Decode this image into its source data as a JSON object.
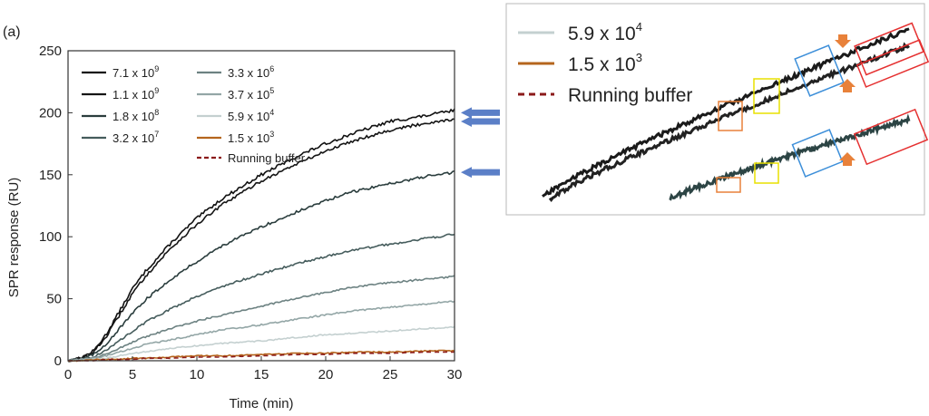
{
  "panel_label": "(a)",
  "chart_data": {
    "type": "line",
    "title": "",
    "xlabel": "Time (min)",
    "ylabel": "SPR response (RU)",
    "xlim": [
      0,
      30
    ],
    "ylim": [
      0,
      250
    ],
    "x_ticks": [
      "0",
      "5",
      "10",
      "15",
      "20",
      "25",
      "30"
    ],
    "y_ticks": [
      "0",
      "50",
      "100",
      "150",
      "200",
      "250"
    ],
    "x": [
      0,
      1,
      2,
      3,
      4,
      5,
      6,
      8,
      10,
      12,
      15,
      18,
      20,
      22,
      25,
      28,
      30
    ],
    "grid": false,
    "legend_position": "top-left",
    "series": [
      {
        "mantissa": "7.1 x 10",
        "exponent": "9",
        "color": "#111111",
        "style": "solid",
        "values": [
          0,
          2,
          8,
          22,
          40,
          58,
          72,
          95,
          115,
          131,
          150,
          166,
          175,
          183,
          193,
          198,
          202
        ]
      },
      {
        "mantissa": "1.1 x 10",
        "exponent": "9",
        "color": "#151515",
        "style": "solid",
        "values": [
          0,
          2,
          7,
          20,
          37,
          54,
          68,
          91,
          110,
          126,
          145,
          160,
          169,
          177,
          186,
          192,
          195
        ]
      },
      {
        "mantissa": "1.8 x 10",
        "exponent": "8",
        "color": "#2a3d3d",
        "style": "solid",
        "values": [
          0,
          1,
          5,
          14,
          26,
          38,
          49,
          66,
          80,
          93,
          108,
          121,
          129,
          136,
          143,
          149,
          152
        ]
      },
      {
        "mantissa": "3.2 x 10",
        "exponent": "7",
        "color": "#455c5c",
        "style": "solid",
        "values": [
          0,
          1,
          3,
          9,
          16,
          24,
          31,
          42,
          52,
          60,
          70,
          79,
          84,
          89,
          94,
          99,
          102
        ]
      },
      {
        "mantissa": "3.3 x 10",
        "exponent": "6",
        "color": "#6d8282",
        "style": "solid",
        "values": [
          0,
          1,
          2,
          6,
          10,
          15,
          19,
          26,
          32,
          37,
          44,
          51,
          55,
          59,
          63,
          66,
          68
        ]
      },
      {
        "mantissa": "3.7 x 10",
        "exponent": "5",
        "color": "#93a6a6",
        "style": "solid",
        "values": [
          0,
          1,
          2,
          4,
          7,
          10,
          13,
          17,
          21,
          25,
          29,
          34,
          37,
          40,
          43,
          46,
          48
        ]
      },
      {
        "mantissa": "5.9 x 10",
        "exponent": "4",
        "color": "#c4d0d0",
        "style": "solid",
        "values": [
          0,
          0,
          1,
          2,
          4,
          6,
          7,
          10,
          12,
          14,
          16,
          19,
          21,
          22,
          24,
          26,
          27
        ]
      },
      {
        "mantissa": "1.5 x 10",
        "exponent": "3",
        "color": "#b5651d",
        "style": "solid",
        "values": [
          0,
          0,
          1,
          1,
          1,
          2,
          2,
          3,
          4,
          4,
          5,
          6,
          6,
          7,
          7,
          8,
          8
        ]
      },
      {
        "name": "Running buffer",
        "color": "#8b1a1a",
        "style": "dashed",
        "values": [
          0,
          0,
          0,
          1,
          1,
          1,
          2,
          2,
          3,
          3,
          4,
          5,
          5,
          6,
          6,
          7,
          7
        ]
      }
    ]
  },
  "arrows": {
    "color": "#5b7fc7",
    "targets": [
      200,
      193,
      152
    ]
  },
  "inset": {
    "border_color": "#b8b8b8",
    "legend": [
      {
        "mantissa": "5.9 x 10",
        "exponent": "4",
        "color": "#c4d0d0",
        "style": "solid"
      },
      {
        "mantissa": "1.5 x 10",
        "exponent": "3",
        "color": "#b5651d",
        "style": "solid"
      },
      {
        "name": "Running buffer",
        "color": "#8b1a1a",
        "style": "dashed"
      }
    ],
    "box_colors": {
      "orange": "#e8813a",
      "yellow": "#e8e000",
      "blue": "#3d8fd9",
      "red": "#e53030"
    },
    "marker_color": "#e8813a"
  }
}
